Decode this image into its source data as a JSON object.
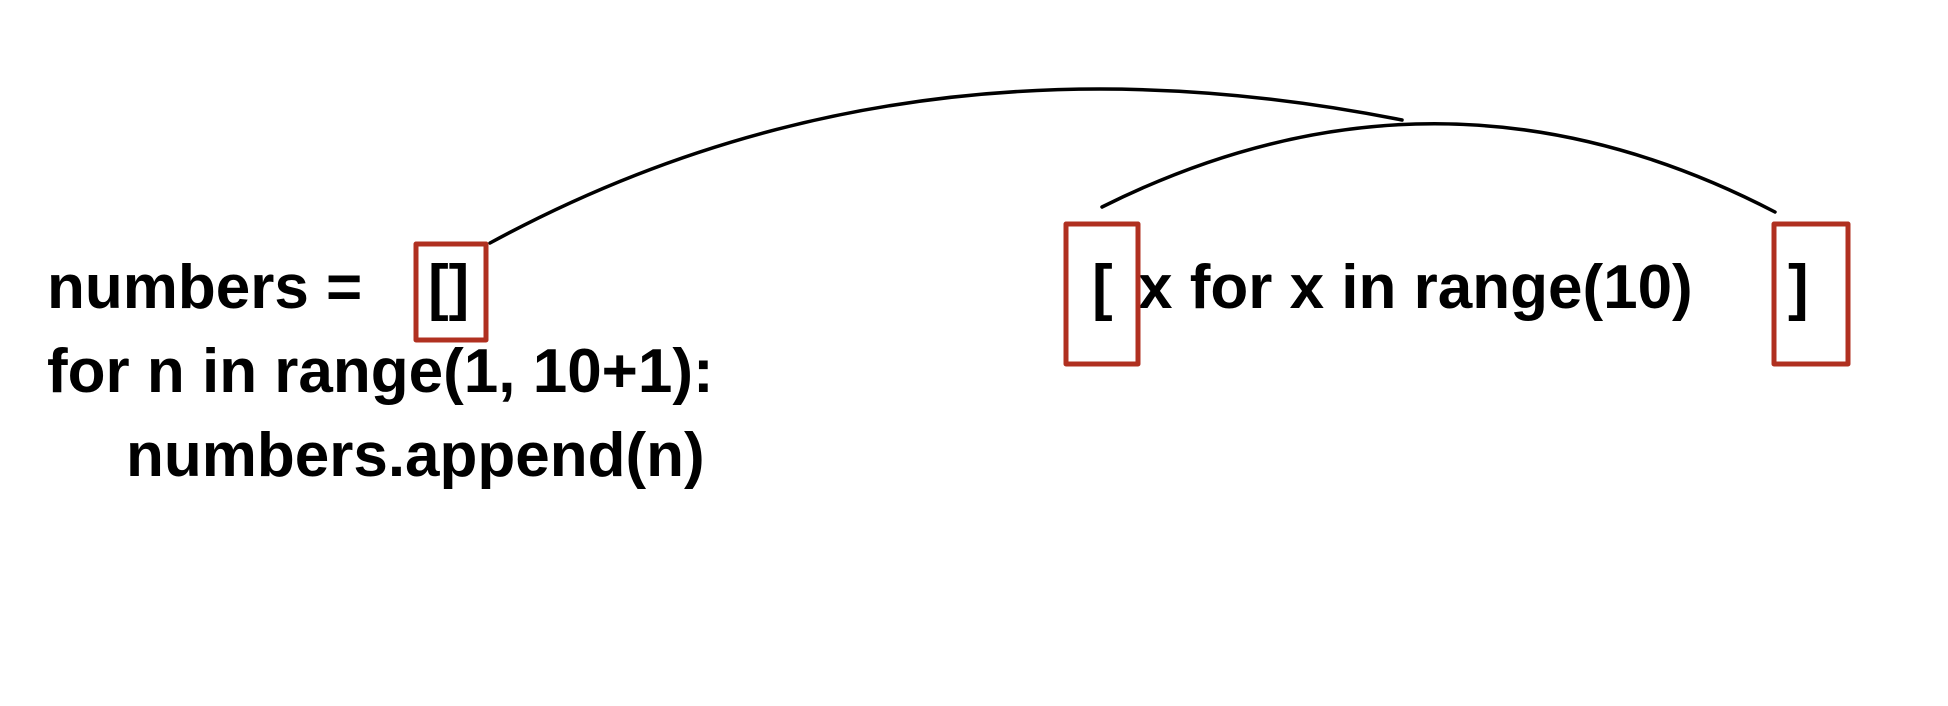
{
  "loop_code": {
    "line1_prefix": "numbers = ",
    "line1_brackets": "[]",
    "line2": "for n in range(1, 10+1):",
    "line3": "numbers.append(n)"
  },
  "comprehension": {
    "open_bracket": "[",
    "body": "x for x in range(10)",
    "close_bracket": "]"
  },
  "colors": {
    "text": "#000000",
    "highlight_box": "#b03020",
    "connector": "#000000"
  }
}
